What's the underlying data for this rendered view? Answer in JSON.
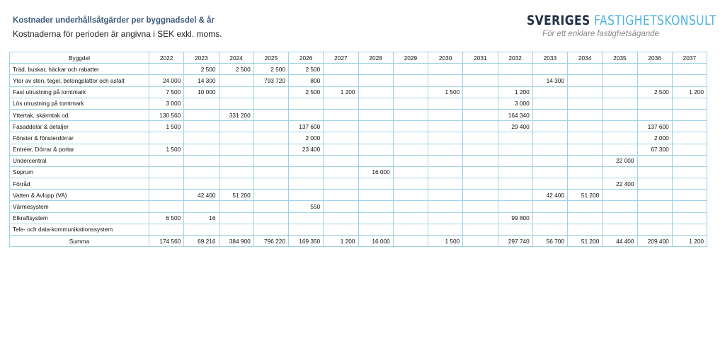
{
  "header": {
    "title": "Kostnader underhållsåtgärder per byggnadsdel & år",
    "subtitle": "Kostnaderna för perioden är angivna i SEK exkl. moms."
  },
  "logo": {
    "name_dark": "SVERIGES",
    "name_light": "FASTIGHETSKONSULT",
    "tagline": "För ett enklare fastighetsägande"
  },
  "table": {
    "columns": [
      "Byggdel",
      "2022",
      "2023",
      "2024",
      "2025",
      "2026",
      "2027",
      "2028",
      "2029",
      "2030",
      "2031",
      "2032",
      "2033",
      "2034",
      "2035",
      "2036",
      "2037"
    ],
    "rows": [
      [
        "Träd, buskar, häckar och rabatter",
        null,
        "2 500",
        "2 500",
        "2 500",
        "2 500",
        null,
        null,
        null,
        null,
        null,
        null,
        null,
        null,
        null,
        null,
        null
      ],
      [
        "Ytor av sten, tegel, betongplattor och asfalt",
        "24 000",
        "14 300",
        null,
        "793 720",
        "800",
        null,
        null,
        null,
        null,
        null,
        null,
        "14 300",
        null,
        null,
        null,
        null
      ],
      [
        "Fast utrustning på tomtmark",
        "7 500",
        "10 000",
        null,
        null,
        "2 500",
        "1 200",
        null,
        null,
        "1 500",
        null,
        "1 200",
        null,
        null,
        null,
        "2 500",
        "1 200"
      ],
      [
        "Lös utrustning på tomtmark",
        "3 000",
        null,
        null,
        null,
        null,
        null,
        null,
        null,
        null,
        null,
        "3 000",
        null,
        null,
        null,
        null,
        null
      ],
      [
        "Yttertak, skärmtak od",
        "130 560",
        null,
        "331 200",
        null,
        null,
        null,
        null,
        null,
        null,
        null,
        "164 340",
        null,
        null,
        null,
        null,
        null
      ],
      [
        "Fasaddelar & detaljer",
        "1 500",
        null,
        null,
        null,
        "137 600",
        null,
        null,
        null,
        null,
        null,
        "29 400",
        null,
        null,
        null,
        "137 600",
        null
      ],
      [
        "Fönster & fönsterdörrar",
        null,
        null,
        null,
        null,
        "2 000",
        null,
        null,
        null,
        null,
        null,
        null,
        null,
        null,
        null,
        "2 000",
        null
      ],
      [
        "Entréer, Dörrar & portar",
        "1 500",
        null,
        null,
        null,
        "23 400",
        null,
        null,
        null,
        null,
        null,
        null,
        null,
        null,
        null,
        "67 300",
        null
      ],
      [
        "Undercentral",
        null,
        null,
        null,
        null,
        null,
        null,
        null,
        null,
        null,
        null,
        null,
        null,
        null,
        "22 000",
        null,
        null
      ],
      [
        "Soprum",
        null,
        null,
        null,
        null,
        null,
        null,
        "16 000",
        null,
        null,
        null,
        null,
        null,
        null,
        null,
        null,
        null
      ],
      [
        "Förråd",
        null,
        null,
        null,
        null,
        null,
        null,
        null,
        null,
        null,
        null,
        null,
        null,
        null,
        "22 400",
        null,
        null
      ],
      [
        "Vatten & Avlopp (VA)",
        null,
        "42 400",
        "51 200",
        null,
        null,
        null,
        null,
        null,
        null,
        null,
        null,
        "42 400",
        "51 200",
        null,
        null,
        null
      ],
      [
        "Värmesystem",
        null,
        null,
        null,
        null,
        "550",
        null,
        null,
        null,
        null,
        null,
        null,
        null,
        null,
        null,
        null,
        null
      ],
      [
        "Elkraftsystem",
        "6 500",
        "16",
        null,
        null,
        null,
        null,
        null,
        null,
        null,
        null,
        "99 800",
        null,
        null,
        null,
        null,
        null
      ],
      [
        "Tele- och data-kommunikationssystem",
        null,
        null,
        null,
        null,
        null,
        null,
        null,
        null,
        null,
        null,
        null,
        null,
        null,
        null,
        null,
        null
      ]
    ],
    "total": [
      "Summa",
      "174 560",
      "69 216",
      "384 900",
      "796 220",
      "169 350",
      "1 200",
      "16 000",
      null,
      "1 500",
      null,
      "297 740",
      "56 700",
      "51 200",
      "44 400",
      "209 400",
      "1 200"
    ]
  }
}
